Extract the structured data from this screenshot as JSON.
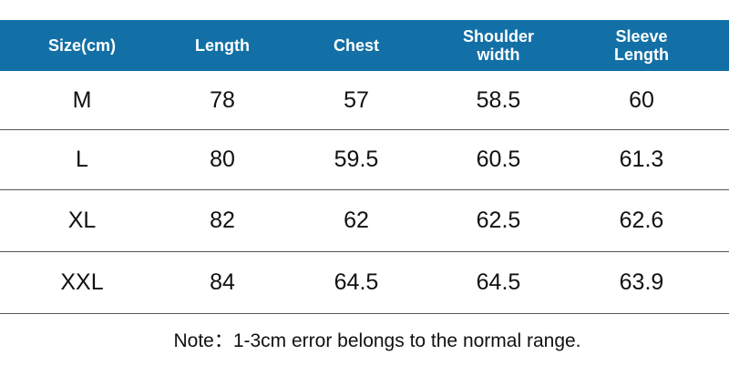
{
  "table": {
    "header": [
      "Size(cm)",
      "Length",
      "Chest",
      "Shoulder width",
      "Sleeve Length"
    ],
    "rows": [
      [
        "M",
        "78",
        "57",
        "58.5",
        "60"
      ],
      [
        "L",
        "80",
        "59.5",
        "60.5",
        "61.3"
      ],
      [
        "XL",
        "82",
        "62",
        "62.5",
        "62.6"
      ],
      [
        "XXL",
        "84",
        "64.5",
        "64.5",
        "63.9"
      ]
    ]
  },
  "note": "Note：1-3cm error belongs to the normal range."
}
